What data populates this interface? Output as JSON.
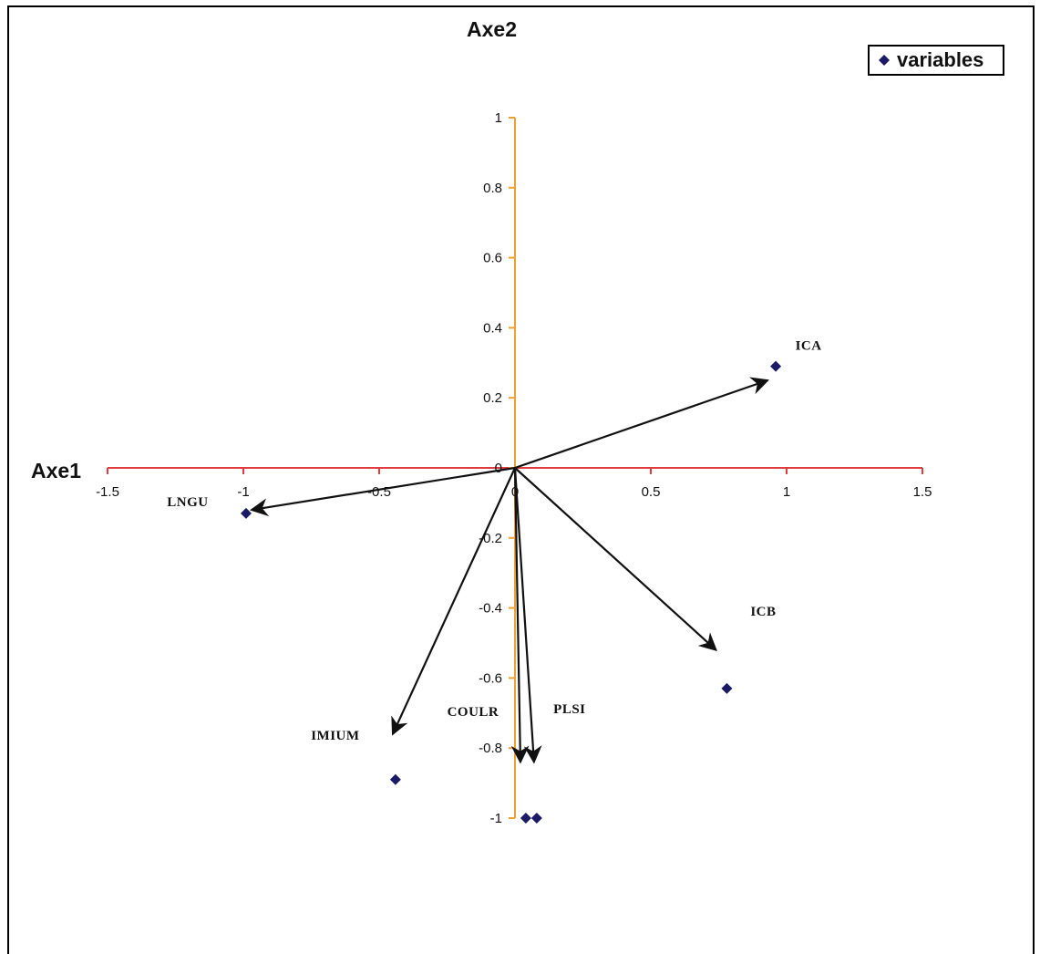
{
  "chart_data": {
    "type": "scatter",
    "xlabel": "Axe1",
    "ylabel": "Axe2",
    "xlim": [
      -1.5,
      1.5
    ],
    "ylim": [
      -1,
      1
    ],
    "x_ticks": [
      -1.5,
      -1,
      -0.5,
      0,
      0.5,
      1,
      1.5
    ],
    "y_ticks": [
      -1,
      -0.8,
      -0.6,
      -0.4,
      -0.2,
      0,
      0.2,
      0.4,
      0.6,
      0.8,
      1
    ],
    "x_tick_labels": [
      "-1.5",
      "-1",
      "-0.5",
      "0",
      "0.5",
      "1",
      "1.5"
    ],
    "y_tick_labels": [
      "-1",
      "-0.8",
      "-0.6",
      "-0.4",
      "-0.2",
      "0",
      "0.2",
      "0.4",
      "0.6",
      "0.8",
      "1"
    ],
    "grid": false,
    "legend_position": "top-right",
    "series": [
      {
        "name": "variables",
        "points": [
          {
            "label": "ICA",
            "x": 0.96,
            "y": 0.29
          },
          {
            "label": "LNGU",
            "x": -0.99,
            "y": -0.13
          },
          {
            "label": "ICB",
            "x": 0.78,
            "y": -0.63
          },
          {
            "label": "IMIUM",
            "x": -0.44,
            "y": -0.89
          },
          {
            "label": "COULR",
            "x": 0.04,
            "y": -1.0
          },
          {
            "label": "PLSI",
            "x": 0.08,
            "y": -1.0
          }
        ]
      }
    ],
    "arrows": [
      {
        "label": "ICA",
        "x": 0.93,
        "y": 0.25
      },
      {
        "label": "LNGU",
        "x": -0.97,
        "y": -0.12
      },
      {
        "label": "ICB",
        "x": 0.74,
        "y": -0.52
      },
      {
        "label": "IMIUM",
        "x": -0.45,
        "y": -0.76
      },
      {
        "label": "COULR",
        "x": 0.02,
        "y": -0.84
      },
      {
        "label": "PLSI",
        "x": 0.07,
        "y": -0.84
      }
    ],
    "colors": {
      "x_axis": "#e03c3c",
      "y_axis": "#f0a030",
      "marker": "#1a1a66",
      "arrow": "#111111"
    }
  },
  "legend": {
    "label": "variables"
  }
}
